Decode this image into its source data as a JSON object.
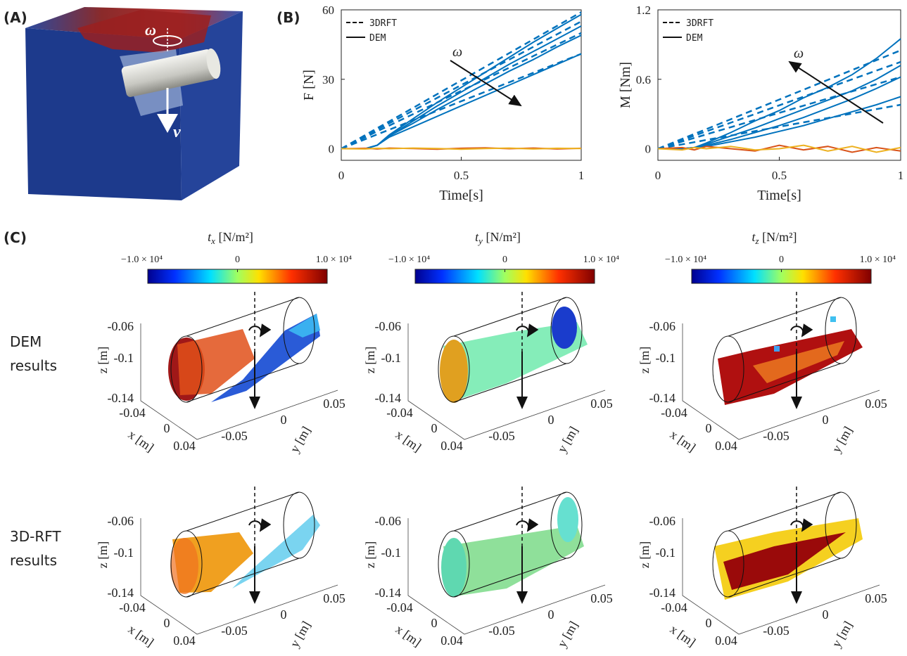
{
  "panel_labels": [
    "(A)",
    "(B)",
    "(C)"
  ],
  "panel_a": {
    "omega": "ω",
    "velocity": "v"
  },
  "chart_data": [
    {
      "type": "line",
      "ylabel": "F [N]",
      "xlabel": "Time[s]",
      "annotation": "ω",
      "x": [
        0,
        0.1,
        0.15,
        0.2,
        0.3,
        0.4,
        0.5,
        0.6,
        0.7,
        0.8,
        0.9,
        1
      ],
      "xlim": [
        0,
        1
      ],
      "xticks": [
        0,
        0.5,
        1
      ],
      "ylim": [
        -5,
        60
      ],
      "yticks": [
        0,
        30,
        60
      ],
      "legend_position": "upper left",
      "legend_entries": [
        {
          "label": "3DRFT",
          "line_style": "dashed"
        },
        {
          "label": "DEM",
          "line_style": "solid"
        }
      ],
      "series": [
        {
          "line_style": "dashed",
          "color": "#0072BD",
          "values": [
            0,
            5.9,
            8.9,
            11.8,
            17.7,
            23.6,
            29.5,
            35.4,
            41.3,
            47.2,
            53.1,
            59
          ]
        },
        {
          "line_style": "dashed",
          "color": "#0072BD",
          "values": [
            0,
            5.5,
            8.3,
            11,
            16.5,
            22,
            27.5,
            33,
            38.5,
            44,
            49.5,
            55
          ]
        },
        {
          "line_style": "dashed",
          "color": "#0072BD",
          "values": [
            0,
            5,
            7.5,
            10,
            15,
            20,
            25,
            30,
            35,
            40,
            45,
            50
          ]
        },
        {
          "line_style": "dashed",
          "color": "#0072BD",
          "values": [
            0,
            4.1,
            6.2,
            8.2,
            12.3,
            16.4,
            20.5,
            24.6,
            28.7,
            32.8,
            36.9,
            41
          ]
        },
        {
          "line_style": "solid",
          "color": "#0072BD",
          "values": [
            0,
            0,
            1.5,
            6,
            13,
            20,
            26.5,
            33,
            39.5,
            46,
            52,
            58
          ]
        },
        {
          "line_style": "solid",
          "color": "#0072BD",
          "values": [
            0,
            0,
            1.5,
            5.5,
            12,
            18.5,
            24.5,
            30.5,
            36.5,
            42,
            47.5,
            53
          ]
        },
        {
          "line_style": "solid",
          "color": "#0072BD",
          "values": [
            0,
            0,
            1.5,
            5.5,
            11,
            17,
            22.5,
            28,
            33.5,
            38.5,
            44,
            49
          ]
        },
        {
          "line_style": "solid",
          "color": "#0072BD",
          "values": [
            0,
            0,
            1.5,
            5,
            9.5,
            14,
            18.5,
            23,
            27.5,
            32,
            36.5,
            41
          ]
        },
        {
          "line_style": "solid",
          "color": "#D95319",
          "values": [
            0,
            0.2,
            -0.1,
            0.3,
            0.1,
            -0.2,
            0.2,
            0.4,
            0,
            0.3,
            -0.1,
            0.2
          ]
        },
        {
          "line_style": "solid",
          "color": "#EDB120",
          "values": [
            0,
            -0.1,
            0.2,
            0,
            0.3,
            0.1,
            -0.2,
            0.1,
            0.3,
            -0.1,
            0.2,
            0.1
          ]
        }
      ]
    },
    {
      "type": "line",
      "ylabel": "M [Nm]",
      "xlabel": "Time[s]",
      "annotation": "ω",
      "x": [
        0,
        0.1,
        0.15,
        0.2,
        0.3,
        0.4,
        0.5,
        0.6,
        0.7,
        0.8,
        0.9,
        1
      ],
      "xlim": [
        0,
        1
      ],
      "xticks": [
        0,
        0.5,
        1
      ],
      "ylim": [
        -0.1,
        1.2
      ],
      "yticks": [
        0,
        0.6,
        1.2
      ],
      "legend_position": "upper left",
      "legend_entries": [
        {
          "label": "3DRFT",
          "line_style": "dashed"
        },
        {
          "label": "DEM",
          "line_style": "solid"
        }
      ],
      "series": [
        {
          "line_style": "dashed",
          "color": "#0072BD",
          "values": [
            0,
            0.085,
            0.128,
            0.17,
            0.255,
            0.34,
            0.425,
            0.51,
            0.595,
            0.68,
            0.765,
            0.85
          ]
        },
        {
          "line_style": "dashed",
          "color": "#0072BD",
          "values": [
            0,
            0.075,
            0.113,
            0.15,
            0.225,
            0.3,
            0.375,
            0.45,
            0.525,
            0.6,
            0.675,
            0.75
          ]
        },
        {
          "line_style": "dashed",
          "color": "#0072BD",
          "values": [
            0,
            0.062,
            0.093,
            0.124,
            0.186,
            0.248,
            0.31,
            0.372,
            0.434,
            0.496,
            0.558,
            0.62
          ]
        },
        {
          "line_style": "dashed",
          "color": "#0072BD",
          "values": [
            0,
            0.038,
            0.057,
            0.076,
            0.114,
            0.152,
            0.19,
            0.228,
            0.266,
            0.304,
            0.342,
            0.38
          ]
        },
        {
          "line_style": "solid",
          "color": "#0072BD",
          "values": [
            0,
            0,
            0.01,
            0.05,
            0.14,
            0.24,
            0.33,
            0.44,
            0.53,
            0.64,
            0.78,
            0.95
          ]
        },
        {
          "line_style": "solid",
          "color": "#0072BD",
          "values": [
            0,
            0,
            0.01,
            0.04,
            0.11,
            0.18,
            0.26,
            0.34,
            0.42,
            0.5,
            0.6,
            0.72
          ]
        },
        {
          "line_style": "solid",
          "color": "#0072BD",
          "values": [
            0,
            0,
            0.01,
            0.03,
            0.08,
            0.14,
            0.2,
            0.27,
            0.35,
            0.43,
            0.52,
            0.62
          ]
        },
        {
          "line_style": "solid",
          "color": "#0072BD",
          "values": [
            0,
            0,
            0.01,
            0.02,
            0.06,
            0.1,
            0.15,
            0.2,
            0.26,
            0.32,
            0.38,
            0.45
          ]
        },
        {
          "line_style": "solid",
          "color": "#D95319",
          "values": [
            0,
            0.01,
            -0.01,
            0.02,
            0,
            -0.02,
            0.03,
            -0.01,
            0.02,
            -0.03,
            0.01,
            -0.02
          ]
        },
        {
          "line_style": "solid",
          "color": "#EDB120",
          "values": [
            0,
            -0.01,
            0.01,
            0,
            0.02,
            -0.01,
            0,
            0.03,
            -0.02,
            0.02,
            -0.03,
            0.01
          ]
        }
      ]
    }
  ],
  "panel_c": {
    "clim": [
      -10000,
      10000
    ],
    "colorbar_ticks": [
      {
        "value": -10000,
        "label": "−1.0 × 10⁴"
      },
      0,
      {
        "value": 10000,
        "label": "1.0 × 10⁴"
      }
    ],
    "columns": [
      {
        "symbol": "t",
        "subscript": "x",
        "unit": " [N/m²]"
      },
      {
        "symbol": "t",
        "subscript": "y",
        "unit": " [N/m²]"
      },
      {
        "symbol": "t",
        "subscript": "z",
        "unit": " [N/m²]"
      }
    ],
    "rows": [
      {
        "label_lines": [
          "DEM",
          "results"
        ]
      },
      {
        "label_lines": [
          "3D-RFT",
          "results"
        ]
      }
    ],
    "axes": {
      "zlabel": "z [m]",
      "xlabel": "x [m]",
      "ylabel": "y [m]",
      "zticks": [
        -0.06,
        -0.1,
        -0.14
      ],
      "xticks": [
        -0.04,
        0,
        0.04
      ],
      "yticks": [
        -0.05,
        0,
        0.05
      ]
    }
  }
}
